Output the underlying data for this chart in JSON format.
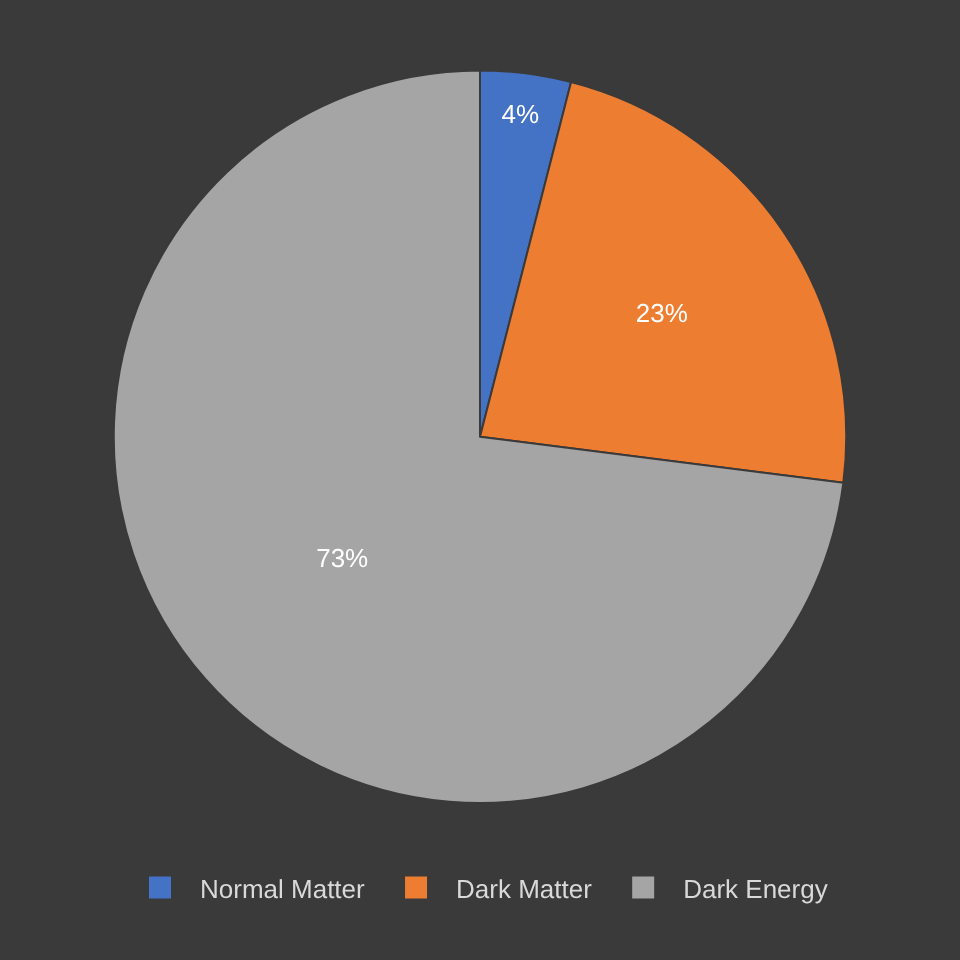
{
  "chart_data": {
    "type": "pie",
    "categories": [
      "Normal Matter",
      "Dark Matter",
      "Dark Energy"
    ],
    "values": [
      4,
      23,
      73
    ],
    "colors": [
      "#4472c4",
      "#ed7d31",
      "#a5a5a5"
    ],
    "value_labels": [
      "4%",
      "23%",
      "73%"
    ],
    "legend": "bottom"
  }
}
